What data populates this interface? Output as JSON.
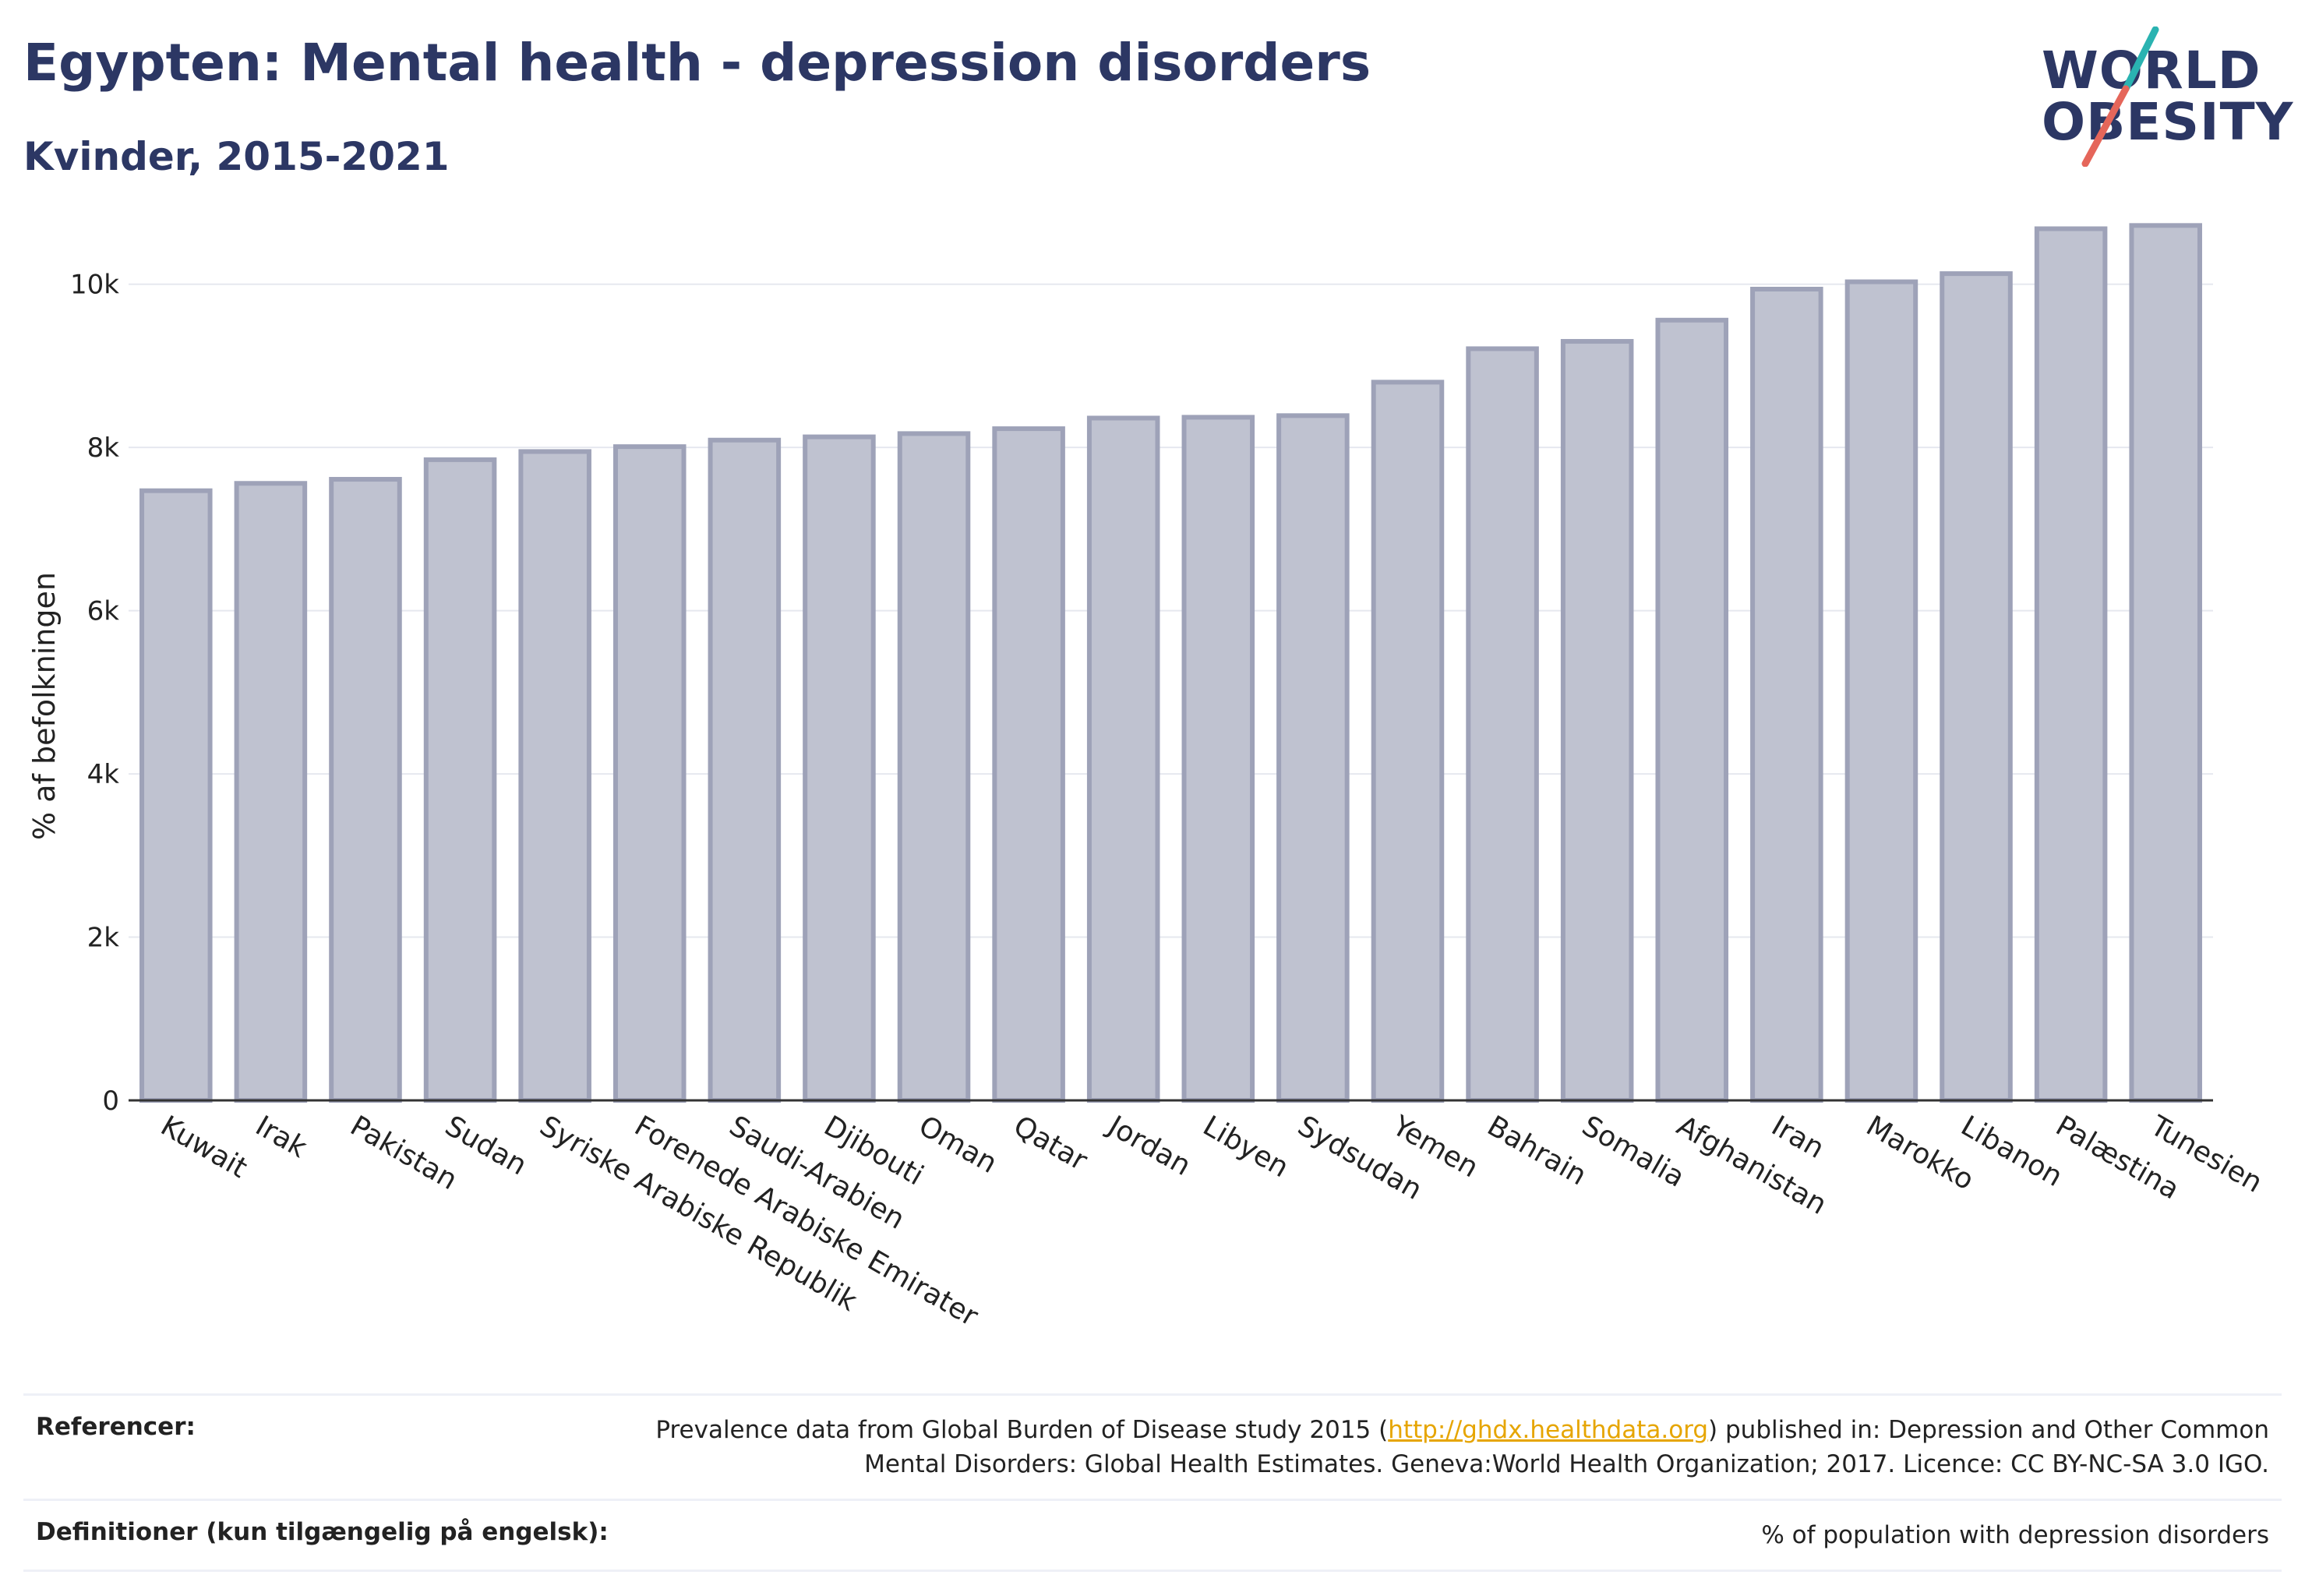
{
  "title": "Egypten: Mental health - depression disorders",
  "subtitle": "Kvinder, 2015-2021",
  "logo": {
    "line1": "WORLD",
    "line2": "OBESITY",
    "slash_colors": [
      "#2ab3b1",
      "#e5665a"
    ]
  },
  "chart_data": {
    "type": "bar",
    "ylabel": "% af befolkningen",
    "xlabel": "",
    "ylim": [
      0,
      11000
    ],
    "yticks": [
      0,
      2000,
      4000,
      6000,
      8000,
      10000
    ],
    "ytick_labels": [
      "0",
      "2k",
      "4k",
      "6k",
      "8k",
      "10k"
    ],
    "grid": true,
    "bar_color": "#bfc2d0",
    "bar_edge_color": "#9ea2b8",
    "categories": [
      "Kuwait",
      "Irak",
      "Pakistan",
      "Sudan",
      "Syriske Arabiske Republik",
      "Forenede Arabiske Emirater",
      "Saudi-Arabien",
      "Djibouti",
      "Oman",
      "Qatar",
      "Jordan",
      "Libyen",
      "Sydsudan",
      "Yemen",
      "Bahrain",
      "Somalia",
      "Afghanistan",
      "Iran",
      "Marokko",
      "Libanon",
      "Palæstina",
      "Tunesien"
    ],
    "values": [
      7470,
      7560,
      7610,
      7850,
      7950,
      8010,
      8090,
      8130,
      8170,
      8230,
      8360,
      8370,
      8390,
      8800,
      9210,
      9300,
      9560,
      9940,
      10030,
      10130,
      10680,
      10720
    ]
  },
  "references": {
    "label": "Referencer:",
    "text_before": "Prevalence data from Global Burden of Disease study 2015 (",
    "link": "http://ghdx.healthdata.org",
    "text_after_line1": ") published in: Depression and Other Common",
    "text_line2": "Mental Disorders: Global Health Estimates. Geneva:World Health Organization; 2017. Licence: CC BY-NC-SA 3.0 IGO."
  },
  "definitions": {
    "label": "Definitioner (kun tilgængelig på engelsk):",
    "text": "% of population with depression disorders"
  }
}
